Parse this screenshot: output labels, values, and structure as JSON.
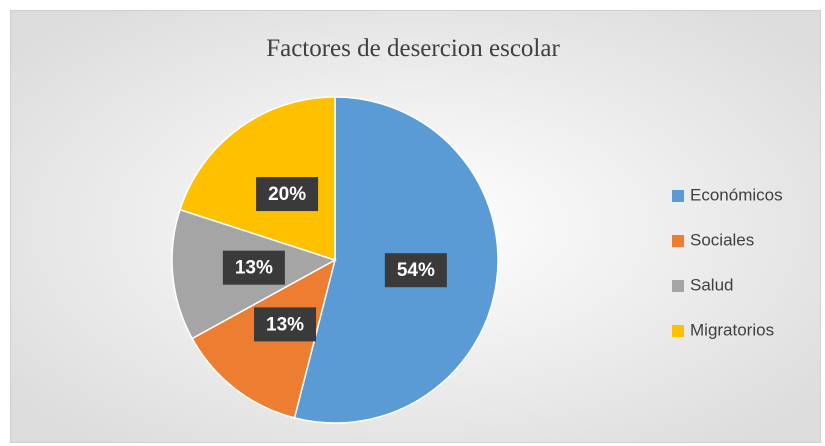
{
  "chart_data": {
    "type": "pie",
    "title": "Factores de desercion escolar",
    "categories": [
      "Económicos",
      "Sociales",
      "Salud",
      "Migratorios"
    ],
    "values": [
      54,
      13,
      13,
      20
    ],
    "value_labels": [
      "54%",
      "13%",
      "13%",
      "20%"
    ],
    "colors": [
      "#5b9bd5",
      "#ed7d31",
      "#a5a5a5",
      "#ffc000"
    ],
    "legend": "right"
  }
}
